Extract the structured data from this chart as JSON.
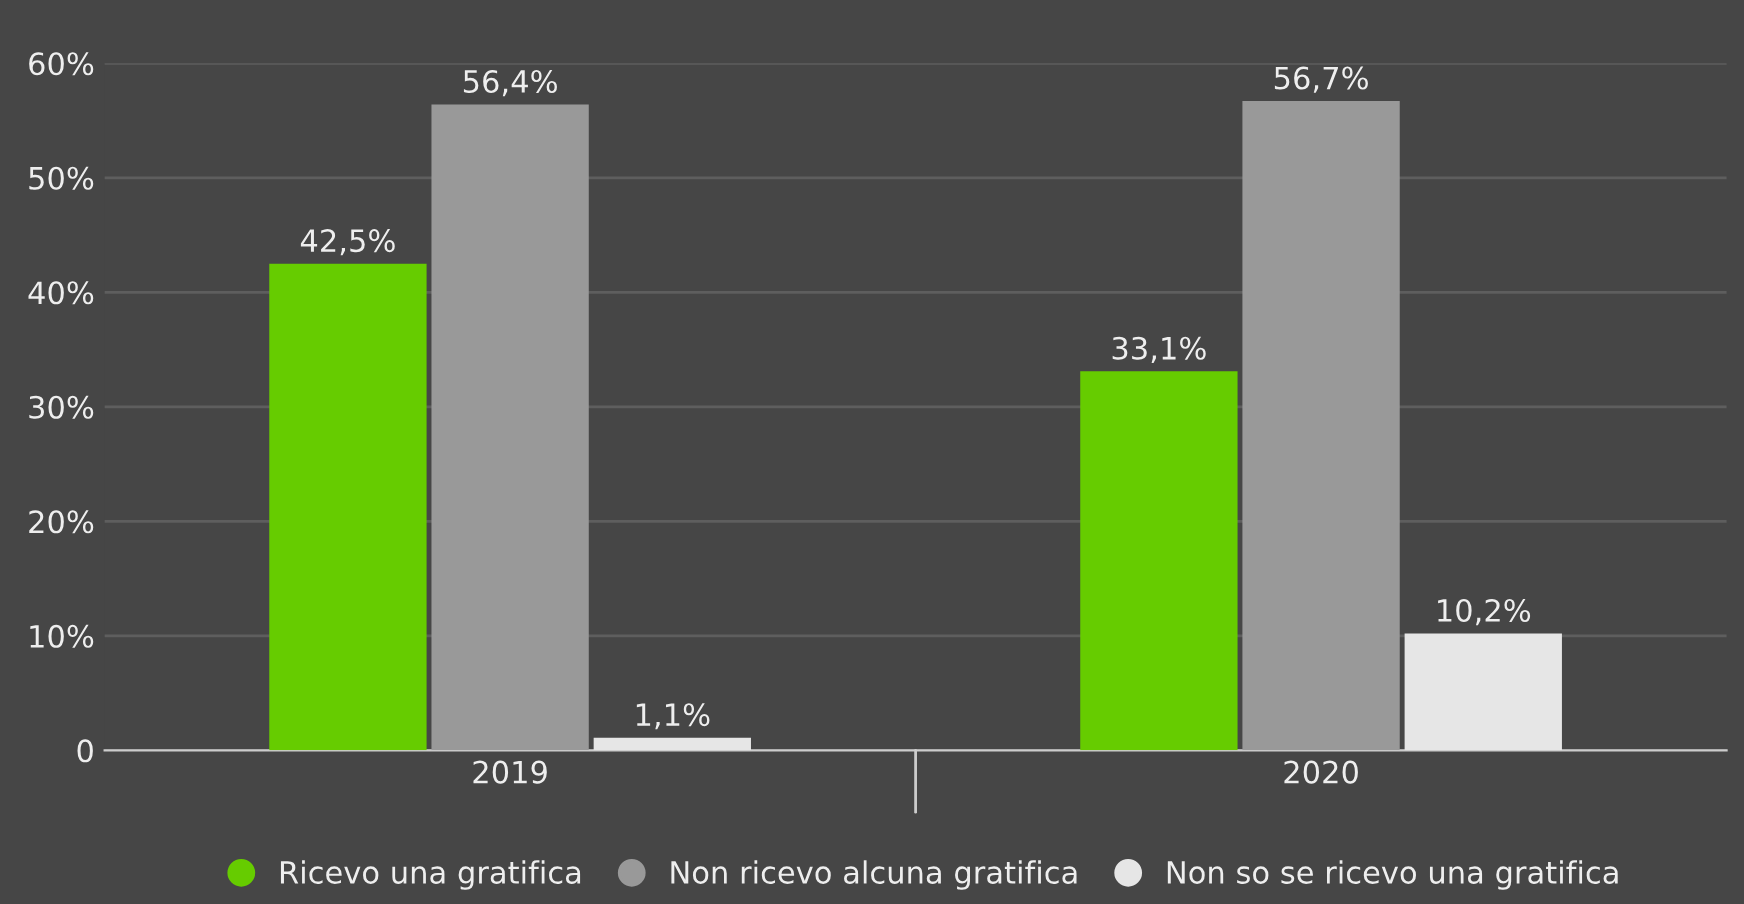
{
  "chart_data": {
    "type": "bar",
    "categories": [
      "2019",
      "2020"
    ],
    "series": [
      {
        "name": "Ricevo una gratifica",
        "color": "#66cc00",
        "values": [
          42.5,
          33.1
        ],
        "value_labels": [
          "42,5%",
          "33,1%"
        ]
      },
      {
        "name": "Non ricevo alcuna gratifica",
        "color": "#999999",
        "values": [
          56.4,
          56.7
        ],
        "value_labels": [
          "56,4%",
          "56,7%"
        ]
      },
      {
        "name": "Non so se ricevo una gratifica",
        "color": "#e6e6e6",
        "values": [
          1.1,
          10.2
        ],
        "value_labels": [
          "1,1%",
          "10,2%"
        ]
      }
    ],
    "ylim": [
      0,
      60
    ],
    "yticks": [
      {
        "value": 0,
        "label": "0"
      },
      {
        "value": 10,
        "label": "10%"
      },
      {
        "value": 20,
        "label": "20%"
      },
      {
        "value": 30,
        "label": "30%"
      },
      {
        "value": 40,
        "label": "40%"
      },
      {
        "value": 50,
        "label": "50%"
      },
      {
        "value": 60,
        "label": "60%"
      }
    ],
    "grid": "y",
    "legend": "bottom"
  }
}
